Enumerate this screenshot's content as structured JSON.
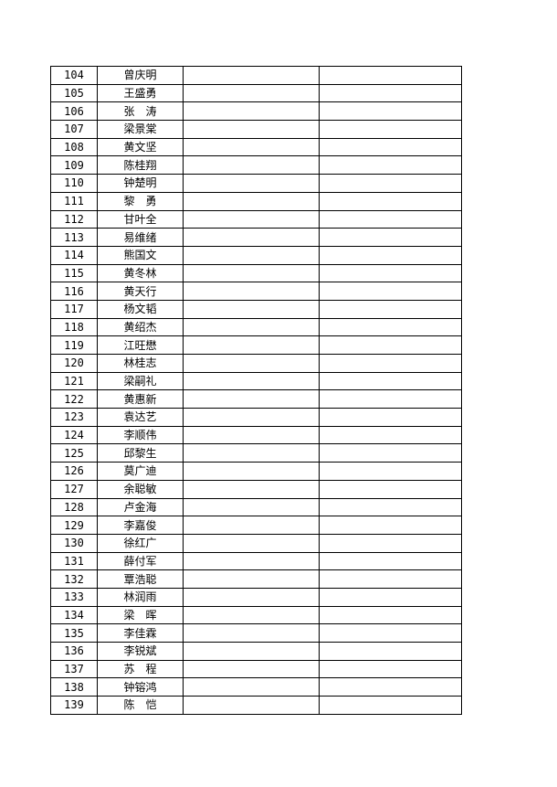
{
  "rows": [
    {
      "no": "104",
      "name": "曾庆明"
    },
    {
      "no": "105",
      "name": "王盛勇"
    },
    {
      "no": "106",
      "name": "张　涛"
    },
    {
      "no": "107",
      "name": "梁景棠"
    },
    {
      "no": "108",
      "name": "黄文坚"
    },
    {
      "no": "109",
      "name": "陈桂翔"
    },
    {
      "no": "110",
      "name": "钟楚明"
    },
    {
      "no": "111",
      "name": "黎　勇"
    },
    {
      "no": "112",
      "name": "甘叶全"
    },
    {
      "no": "113",
      "name": "易维绪"
    },
    {
      "no": "114",
      "name": "熊国文"
    },
    {
      "no": "115",
      "name": "黄冬林"
    },
    {
      "no": "116",
      "name": "黄天行"
    },
    {
      "no": "117",
      "name": "杨文韬"
    },
    {
      "no": "118",
      "name": "黄绍杰"
    },
    {
      "no": "119",
      "name": "江旺懋"
    },
    {
      "no": "120",
      "name": "林桂志"
    },
    {
      "no": "121",
      "name": "梁嗣礼"
    },
    {
      "no": "122",
      "name": "黄惠新"
    },
    {
      "no": "123",
      "name": "袁达艺"
    },
    {
      "no": "124",
      "name": "李顺伟"
    },
    {
      "no": "125",
      "name": "邱黎生"
    },
    {
      "no": "126",
      "name": "莫广迪"
    },
    {
      "no": "127",
      "name": "余聪敏"
    },
    {
      "no": "128",
      "name": "卢金海"
    },
    {
      "no": "129",
      "name": "李嘉俊"
    },
    {
      "no": "130",
      "name": "徐红广"
    },
    {
      "no": "131",
      "name": "薛付军"
    },
    {
      "no": "132",
      "name": "覃浩聪"
    },
    {
      "no": "133",
      "name": "林润雨"
    },
    {
      "no": "134",
      "name": "梁　晖"
    },
    {
      "no": "135",
      "name": "李佳霖"
    },
    {
      "no": "136",
      "name": "李锐斌"
    },
    {
      "no": "137",
      "name": "苏　程"
    },
    {
      "no": "138",
      "name": "钟镕鸿"
    },
    {
      "no": "139",
      "name": "陈　恺"
    }
  ]
}
